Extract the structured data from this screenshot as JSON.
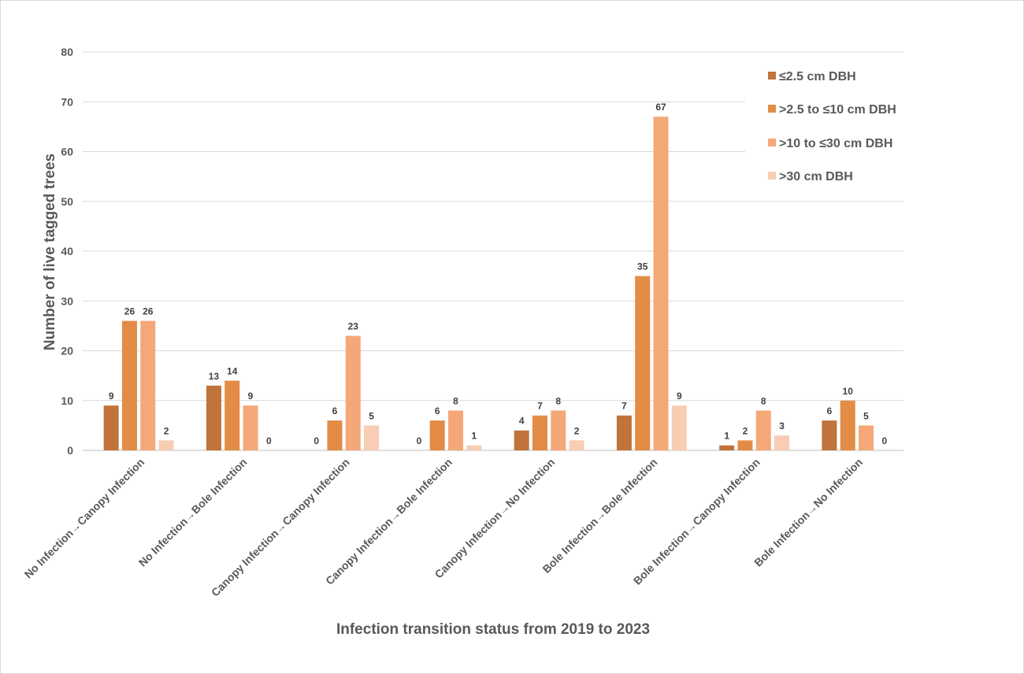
{
  "chart_data": {
    "type": "bar",
    "title": "",
    "xlabel": "Infection transition status from 2019 to 2023",
    "ylabel": "Number of live tagged trees",
    "ylim": [
      0,
      80
    ],
    "yticks": [
      0,
      10,
      20,
      30,
      40,
      50,
      60,
      70,
      80
    ],
    "grid": true,
    "legend_position": "top-right",
    "categories": [
      "No Infection→Canopy Infection",
      "No Infection→Bole Infection",
      "Canopy Infection→Canopy Infection",
      "Canopy Infection→Bole Infection",
      "Canopy Infection→No Infection",
      "Bole Infection→Bole Infection",
      "Bole Infection→Canopy Infection",
      "Bole Infection→No Infection"
    ],
    "series": [
      {
        "name": "≤2.5 cm DBH",
        "color": "#c0733a",
        "values": [
          9,
          13,
          0,
          0,
          4,
          7,
          1,
          6
        ]
      },
      {
        "name": ">2.5 to ≤10 cm DBH",
        "color": "#e28c45",
        "values": [
          26,
          14,
          6,
          6,
          7,
          35,
          2,
          10
        ]
      },
      {
        "name": ">10 to ≤30 cm DBH",
        "color": "#f4a878",
        "values": [
          26,
          9,
          23,
          8,
          8,
          67,
          8,
          5
        ]
      },
      {
        "name": ">30 cm DBH",
        "color": "#f8cdb4",
        "values": [
          2,
          0,
          5,
          1,
          2,
          9,
          3,
          0
        ]
      }
    ]
  }
}
